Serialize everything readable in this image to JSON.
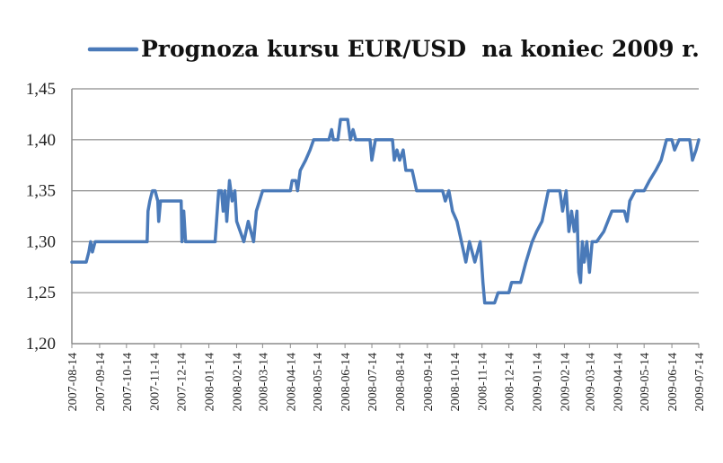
{
  "chart_data": {
    "type": "line",
    "legend_placement": "top",
    "grid": "horizontal",
    "ylim": [
      1.2,
      1.45
    ],
    "y_ticks": [
      "1,20",
      "1,25",
      "1,30",
      "1,35",
      "1,40",
      "1,45"
    ],
    "x_ticks": [
      "2007-08-14",
      "2007-09-14",
      "2007-10-14",
      "2007-11-14",
      "2007-12-14",
      "2008-01-14",
      "2008-02-14",
      "2008-03-14",
      "2008-04-14",
      "2008-05-14",
      "2008-06-14",
      "2008-07-14",
      "2008-08-14",
      "2008-09-14",
      "2008-10-14",
      "2008-11-14",
      "2008-12-14",
      "2009-01-14",
      "2009-02-14",
      "2009-03-14",
      "2009-04-14",
      "2009-05-14",
      "2009-06-14",
      "2009-07-14"
    ],
    "series": [
      {
        "name": "Prognoza kursu EUR/USD  na koniec 2009 r.",
        "color": "#4a7ab9",
        "points": [
          [
            "2007-08-14",
            1.28
          ],
          [
            "2007-08-30",
            1.28
          ],
          [
            "2007-09-02",
            1.29
          ],
          [
            "2007-09-04",
            1.3
          ],
          [
            "2007-09-06",
            1.29
          ],
          [
            "2007-09-09",
            1.3
          ],
          [
            "2007-10-14",
            1.3
          ],
          [
            "2007-11-06",
            1.3
          ],
          [
            "2007-11-07",
            1.33
          ],
          [
            "2007-11-09",
            1.34
          ],
          [
            "2007-11-12",
            1.35
          ],
          [
            "2007-11-15",
            1.35
          ],
          [
            "2007-11-18",
            1.34
          ],
          [
            "2007-11-19",
            1.32
          ],
          [
            "2007-11-21",
            1.34
          ],
          [
            "2007-12-14",
            1.34
          ],
          [
            "2007-12-15",
            1.3
          ],
          [
            "2007-12-17",
            1.33
          ],
          [
            "2007-12-19",
            1.3
          ],
          [
            "2008-01-14",
            1.3
          ],
          [
            "2008-01-21",
            1.3
          ],
          [
            "2008-01-25",
            1.35
          ],
          [
            "2008-01-28",
            1.35
          ],
          [
            "2008-01-30",
            1.33
          ],
          [
            "2008-02-01",
            1.35
          ],
          [
            "2008-02-03",
            1.32
          ],
          [
            "2008-02-06",
            1.36
          ],
          [
            "2008-02-09",
            1.34
          ],
          [
            "2008-02-12",
            1.35
          ],
          [
            "2008-02-14",
            1.32
          ],
          [
            "2008-02-18",
            1.31
          ],
          [
            "2008-02-22",
            1.3
          ],
          [
            "2008-02-27",
            1.32
          ],
          [
            "2008-03-01",
            1.31
          ],
          [
            "2008-03-04",
            1.3
          ],
          [
            "2008-03-07",
            1.33
          ],
          [
            "2008-03-14",
            1.35
          ],
          [
            "2008-04-14",
            1.35
          ],
          [
            "2008-04-16",
            1.36
          ],
          [
            "2008-04-20",
            1.36
          ],
          [
            "2008-04-22",
            1.35
          ],
          [
            "2008-04-25",
            1.37
          ],
          [
            "2008-05-01",
            1.38
          ],
          [
            "2008-05-06",
            1.39
          ],
          [
            "2008-05-10",
            1.4
          ],
          [
            "2008-05-27",
            1.4
          ],
          [
            "2008-05-30",
            1.41
          ],
          [
            "2008-06-01",
            1.4
          ],
          [
            "2008-06-06",
            1.4
          ],
          [
            "2008-06-09",
            1.42
          ],
          [
            "2008-06-17",
            1.42
          ],
          [
            "2008-06-20",
            1.4
          ],
          [
            "2008-06-23",
            1.41
          ],
          [
            "2008-06-26",
            1.4
          ],
          [
            "2008-07-12",
            1.4
          ],
          [
            "2008-07-14",
            1.38
          ],
          [
            "2008-07-18",
            1.4
          ],
          [
            "2008-08-06",
            1.4
          ],
          [
            "2008-08-08",
            1.38
          ],
          [
            "2008-08-11",
            1.39
          ],
          [
            "2008-08-14",
            1.38
          ],
          [
            "2008-08-18",
            1.39
          ],
          [
            "2008-08-21",
            1.37
          ],
          [
            "2008-08-28",
            1.37
          ],
          [
            "2008-09-02",
            1.35
          ],
          [
            "2008-09-21",
            1.35
          ],
          [
            "2008-10-01",
            1.35
          ],
          [
            "2008-10-04",
            1.34
          ],
          [
            "2008-10-08",
            1.35
          ],
          [
            "2008-10-12",
            1.33
          ],
          [
            "2008-10-17",
            1.32
          ],
          [
            "2008-10-22",
            1.3
          ],
          [
            "2008-10-27",
            1.28
          ],
          [
            "2008-10-31",
            1.3
          ],
          [
            "2008-11-03",
            1.29
          ],
          [
            "2008-11-06",
            1.28
          ],
          [
            "2008-11-12",
            1.3
          ],
          [
            "2008-11-15",
            1.26
          ],
          [
            "2008-11-17",
            1.24
          ],
          [
            "2008-11-28",
            1.24
          ],
          [
            "2008-12-02",
            1.25
          ],
          [
            "2008-12-14",
            1.25
          ],
          [
            "2008-12-17",
            1.26
          ],
          [
            "2008-12-27",
            1.26
          ],
          [
            "2009-01-02",
            1.28
          ],
          [
            "2009-01-09",
            1.3
          ],
          [
            "2009-01-14",
            1.31
          ],
          [
            "2009-01-20",
            1.32
          ],
          [
            "2009-01-27",
            1.35
          ],
          [
            "2009-02-09",
            1.35
          ],
          [
            "2009-02-12",
            1.33
          ],
          [
            "2009-02-16",
            1.35
          ],
          [
            "2009-02-19",
            1.31
          ],
          [
            "2009-02-22",
            1.33
          ],
          [
            "2009-02-25",
            1.31
          ],
          [
            "2009-02-28",
            1.33
          ],
          [
            "2009-03-02",
            1.27
          ],
          [
            "2009-03-04",
            1.26
          ],
          [
            "2009-03-06",
            1.3
          ],
          [
            "2009-03-08",
            1.28
          ],
          [
            "2009-03-11",
            1.3
          ],
          [
            "2009-03-14",
            1.27
          ],
          [
            "2009-03-17",
            1.3
          ],
          [
            "2009-03-22",
            1.3
          ],
          [
            "2009-03-30",
            1.31
          ],
          [
            "2009-04-08",
            1.33
          ],
          [
            "2009-04-22",
            1.33
          ],
          [
            "2009-04-25",
            1.32
          ],
          [
            "2009-04-28",
            1.34
          ],
          [
            "2009-05-04",
            1.35
          ],
          [
            "2009-05-14",
            1.35
          ],
          [
            "2009-05-20",
            1.36
          ],
          [
            "2009-05-27",
            1.37
          ],
          [
            "2009-06-02",
            1.38
          ],
          [
            "2009-06-08",
            1.4
          ],
          [
            "2009-06-14",
            1.4
          ],
          [
            "2009-06-17",
            1.39
          ],
          [
            "2009-06-22",
            1.4
          ],
          [
            "2009-07-04",
            1.4
          ],
          [
            "2009-07-07",
            1.38
          ],
          [
            "2009-07-11",
            1.39
          ],
          [
            "2009-07-14",
            1.4
          ]
        ]
      }
    ]
  }
}
